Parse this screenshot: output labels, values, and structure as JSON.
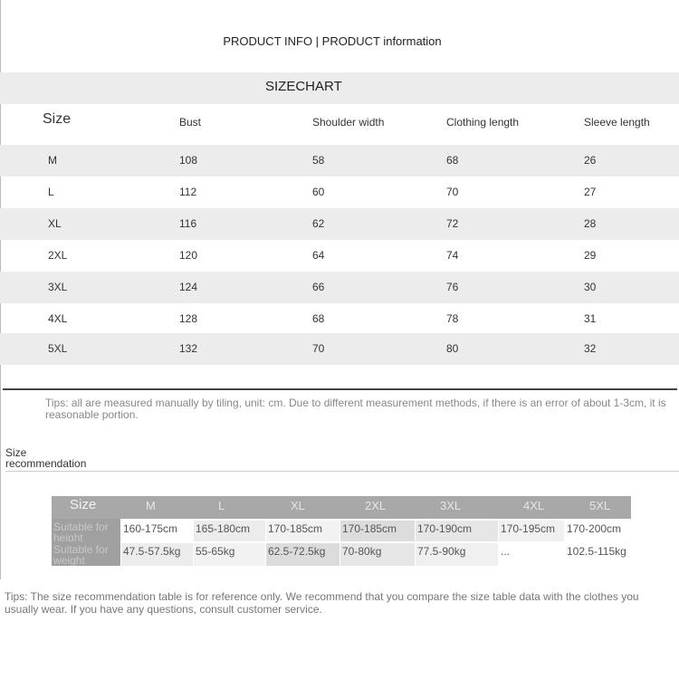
{
  "header": {
    "title": "PRODUCT INFO | PRODUCT information",
    "chart_title": "SIZECHART"
  },
  "size_chart": {
    "columns": [
      "Size",
      "Bust",
      "Shoulder width",
      "Clothing length",
      "Sleeve length"
    ],
    "rows": [
      [
        "M",
        "108",
        "58",
        "68",
        "26"
      ],
      [
        "L",
        "112",
        "60",
        "70",
        "27"
      ],
      [
        "XL",
        "116",
        "62",
        "72",
        "28"
      ],
      [
        "2XL",
        "120",
        "64",
        "74",
        "29"
      ],
      [
        "3XL",
        "124",
        "66",
        "76",
        "30"
      ],
      [
        "4XL",
        "128",
        "68",
        "78",
        "31"
      ],
      [
        "5XL",
        "132",
        "70",
        "80",
        "32"
      ]
    ]
  },
  "tips_measure": "Tips: all are measured manually by tiling, unit: cm. Due to different measurement methods, if there is an error of about 1-3cm, it is reasonable portion.",
  "recommendation": {
    "label": "Size recommendation",
    "header": [
      "Size",
      "M",
      "L",
      "XL",
      "2XL",
      "3XL",
      "4XL",
      "5XL"
    ],
    "height_row": [
      "Suitable for height",
      "160-175cm",
      "165-180cm",
      "170-185cm",
      "170-185cm",
      "170-190cm",
      "170-195cm",
      "170-200cm"
    ],
    "weight_row": [
      "Suitable for weight",
      "47.5-57.5kg",
      "55-65kg",
      "62.5-72.5kg",
      "70-80kg",
      "77.5-90kg",
      "...",
      "102.5-115kg"
    ]
  },
  "tips_recommend": "Tips: The size recommendation table is for reference only. We recommend that you compare the size table data with the clothes you usually wear. If you have any questions, consult customer service."
}
